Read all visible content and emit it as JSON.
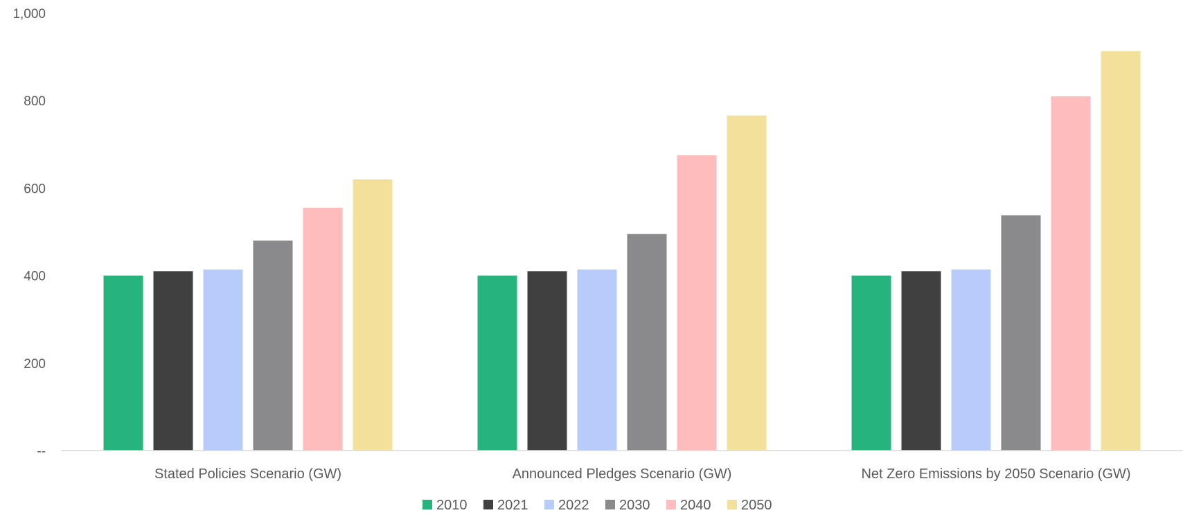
{
  "chart_data": {
    "type": "bar",
    "title": "",
    "xlabel": "",
    "ylabel": "",
    "categories": [
      "Stated Policies Scenario (GW)",
      "Announced Pledges Scenario (GW)",
      "Net Zero Emissions by 2050 Scenario (GW)"
    ],
    "series": [
      {
        "name": "2010",
        "color": "#26b37d",
        "values": [
          400,
          400,
          400
        ]
      },
      {
        "name": "2021",
        "color": "#404040",
        "values": [
          410,
          410,
          410
        ]
      },
      {
        "name": "2022",
        "color": "#b8ccfc",
        "values": [
          414,
          414,
          414
        ]
      },
      {
        "name": "2030",
        "color": "#8a8a8d",
        "values": [
          480,
          495,
          538
        ]
      },
      {
        "name": "2040",
        "color": "#ffbcbc",
        "values": [
          555,
          675,
          810
        ]
      },
      {
        "name": "2050",
        "color": "#f3e09a",
        "values": [
          620,
          766,
          913
        ]
      }
    ],
    "ylim": [
      0,
      1000
    ],
    "yticks": [
      0,
      200,
      400,
      600,
      800,
      1000
    ],
    "ytick_labels": [
      "--",
      "200",
      "400",
      "600",
      "800",
      "1,000"
    ],
    "grid": false,
    "legend_position": "bottom"
  }
}
